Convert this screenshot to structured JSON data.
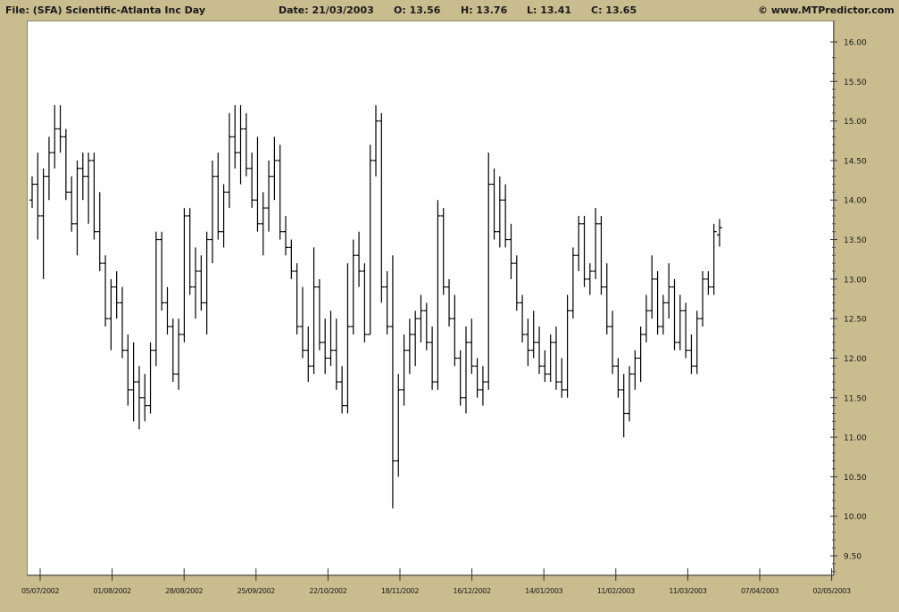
{
  "header": {
    "file": "File: (SFA) Scientific-Atlanta Inc Day",
    "date": "Date: 21/03/2003",
    "open": "O: 13.56",
    "high": "H: 13.76",
    "low": "L: 13.41",
    "close": "C: 13.65",
    "copyright": "© www.MTPredictor.com"
  },
  "colors": {
    "background": "#c9bc8e",
    "plot": "#ffffff",
    "bars": "#000000"
  },
  "chart_data": {
    "type": "ohlc",
    "title": "File: (SFA) Scientific-Atlanta Inc Day",
    "ylim": [
      9.25,
      16.0
    ],
    "ytick_labels": [
      "16.00",
      "15.50",
      "15.00",
      "14.50",
      "14.00",
      "13.50",
      "13.00",
      "12.50",
      "12.00",
      "11.50",
      "11.00",
      "10.50",
      "10.00",
      "9.50"
    ],
    "yticks": [
      16.0,
      15.5,
      15.0,
      14.5,
      14.0,
      13.5,
      13.0,
      12.5,
      12.0,
      11.5,
      11.0,
      10.5,
      10.0,
      9.5
    ],
    "y_axis_position": "right",
    "xtick_labels": [
      "05/07/2002",
      "01/08/2002",
      "28/08/2002",
      "25/09/2002",
      "22/10/2002",
      "18/11/2002",
      "16/12/2002",
      "14/01/2003",
      "11/02/2003",
      "11/03/2003",
      "07/04/2003",
      "02/05/2003"
    ],
    "grid": false,
    "last_bar": {
      "date": "21/03/2003",
      "open": 13.56,
      "high": 13.76,
      "low": 13.41,
      "close": 13.65
    },
    "ohlc_bars": [
      [
        14.0,
        14.3,
        13.9,
        14.2
      ],
      [
        14.2,
        14.6,
        13.5,
        13.8
      ],
      [
        13.8,
        14.4,
        13.0,
        14.3
      ],
      [
        14.3,
        14.8,
        14.0,
        14.6
      ],
      [
        14.6,
        15.2,
        14.4,
        14.9
      ],
      [
        14.9,
        15.2,
        14.6,
        14.8
      ],
      [
        14.8,
        14.9,
        14.0,
        14.1
      ],
      [
        14.1,
        14.3,
        13.6,
        13.7
      ],
      [
        13.7,
        14.5,
        13.3,
        14.4
      ],
      [
        14.4,
        14.6,
        14.0,
        14.3
      ],
      [
        14.3,
        14.6,
        13.7,
        14.5
      ],
      [
        14.5,
        14.6,
        13.5,
        13.6
      ],
      [
        13.6,
        14.1,
        13.1,
        13.2
      ],
      [
        13.2,
        13.3,
        12.4,
        12.5
      ],
      [
        12.5,
        13.0,
        12.1,
        12.9
      ],
      [
        12.9,
        13.1,
        12.5,
        12.7
      ],
      [
        12.7,
        12.9,
        12.0,
        12.1
      ],
      [
        12.1,
        12.3,
        11.4,
        11.6
      ],
      [
        11.6,
        12.2,
        11.2,
        11.7
      ],
      [
        11.7,
        11.9,
        11.1,
        11.5
      ],
      [
        11.5,
        11.8,
        11.2,
        11.4
      ],
      [
        11.4,
        12.2,
        11.3,
        12.1
      ],
      [
        12.1,
        13.6,
        11.9,
        13.5
      ],
      [
        13.5,
        13.6,
        12.6,
        12.7
      ],
      [
        12.7,
        12.9,
        12.3,
        12.4
      ],
      [
        12.4,
        12.5,
        11.7,
        11.8
      ],
      [
        11.8,
        12.5,
        11.6,
        12.3
      ],
      [
        12.3,
        13.9,
        12.2,
        13.8
      ],
      [
        13.8,
        13.9,
        12.8,
        12.9
      ],
      [
        12.9,
        13.4,
        12.5,
        13.1
      ],
      [
        13.1,
        13.3,
        12.6,
        12.7
      ],
      [
        12.7,
        13.6,
        12.3,
        13.5
      ],
      [
        13.5,
        14.5,
        13.2,
        14.3
      ],
      [
        14.3,
        14.6,
        13.5,
        13.6
      ],
      [
        13.6,
        14.2,
        13.4,
        14.1
      ],
      [
        14.1,
        15.1,
        13.9,
        14.8
      ],
      [
        14.8,
        15.2,
        14.4,
        14.6
      ],
      [
        14.6,
        15.2,
        14.2,
        14.9
      ],
      [
        14.9,
        15.1,
        14.3,
        14.4
      ],
      [
        14.4,
        14.6,
        13.9,
        14.0
      ],
      [
        14.0,
        14.8,
        13.6,
        13.7
      ],
      [
        13.7,
        14.1,
        13.3,
        13.9
      ],
      [
        13.9,
        14.5,
        13.6,
        14.3
      ],
      [
        14.3,
        14.8,
        14.0,
        14.5
      ],
      [
        14.5,
        14.7,
        13.5,
        13.6
      ],
      [
        13.6,
        13.8,
        13.3,
        13.4
      ],
      [
        13.4,
        13.5,
        13.0,
        13.1
      ],
      [
        13.1,
        13.2,
        12.3,
        12.4
      ],
      [
        12.4,
        12.9,
        12.0,
        12.1
      ],
      [
        12.1,
        12.4,
        11.7,
        11.9
      ],
      [
        11.9,
        13.4,
        11.8,
        12.9
      ],
      [
        12.9,
        13.0,
        12.1,
        12.2
      ],
      [
        12.2,
        12.5,
        11.8,
        12.0
      ],
      [
        12.0,
        12.6,
        11.9,
        12.1
      ],
      [
        12.1,
        12.5,
        11.6,
        11.7
      ],
      [
        11.7,
        11.9,
        11.3,
        11.4
      ],
      [
        11.4,
        13.2,
        11.3,
        12.4
      ],
      [
        12.4,
        13.5,
        12.3,
        13.3
      ],
      [
        13.3,
        13.6,
        12.9,
        13.1
      ],
      [
        13.1,
        13.2,
        12.2,
        12.3
      ],
      [
        12.3,
        14.7,
        12.3,
        14.5
      ],
      [
        14.5,
        15.2,
        14.3,
        15.0
      ],
      [
        15.0,
        15.1,
        12.7,
        12.9
      ],
      [
        12.9,
        13.1,
        12.3,
        12.4
      ],
      [
        12.4,
        13.3,
        10.1,
        10.7
      ],
      [
        10.7,
        11.8,
        10.5,
        11.6
      ],
      [
        11.6,
        12.3,
        11.4,
        12.1
      ],
      [
        12.1,
        12.5,
        11.8,
        12.3
      ],
      [
        12.3,
        12.6,
        11.9,
        12.5
      ],
      [
        12.5,
        12.8,
        12.2,
        12.6
      ],
      [
        12.6,
        12.7,
        12.1,
        12.2
      ],
      [
        12.2,
        12.4,
        11.6,
        11.7
      ],
      [
        11.7,
        14.0,
        11.6,
        13.8
      ],
      [
        13.8,
        13.9,
        12.8,
        12.9
      ],
      [
        12.9,
        13.0,
        12.4,
        12.5
      ],
      [
        12.5,
        12.8,
        11.9,
        12.0
      ],
      [
        12.0,
        12.1,
        11.4,
        11.5
      ],
      [
        11.5,
        12.4,
        11.3,
        12.2
      ],
      [
        12.2,
        12.5,
        11.8,
        11.9
      ],
      [
        11.9,
        12.0,
        11.5,
        11.6
      ],
      [
        11.6,
        11.9,
        11.4,
        11.7
      ],
      [
        11.7,
        14.6,
        11.6,
        14.2
      ],
      [
        14.2,
        14.4,
        13.5,
        13.6
      ],
      [
        13.6,
        14.3,
        13.4,
        14.0
      ],
      [
        14.0,
        14.2,
        13.4,
        13.5
      ],
      [
        13.5,
        13.7,
        13.0,
        13.2
      ],
      [
        13.2,
        13.3,
        12.6,
        12.7
      ],
      [
        12.7,
        12.8,
        12.2,
        12.3
      ],
      [
        12.3,
        12.5,
        11.9,
        12.1
      ],
      [
        12.1,
        12.6,
        12.0,
        12.2
      ],
      [
        12.2,
        12.4,
        11.8,
        11.9
      ],
      [
        11.9,
        12.1,
        11.7,
        11.8
      ],
      [
        11.8,
        12.3,
        11.7,
        12.2
      ],
      [
        12.2,
        12.4,
        11.6,
        11.7
      ],
      [
        11.7,
        12.0,
        11.5,
        11.6
      ],
      [
        11.6,
        12.8,
        11.5,
        12.6
      ],
      [
        12.6,
        13.4,
        12.5,
        13.3
      ],
      [
        13.3,
        13.8,
        13.1,
        13.7
      ],
      [
        13.7,
        13.8,
        12.9,
        13.0
      ],
      [
        13.0,
        13.2,
        12.8,
        13.1
      ],
      [
        13.1,
        13.9,
        13.0,
        13.7
      ],
      [
        13.7,
        13.8,
        12.8,
        12.9
      ],
      [
        12.9,
        13.2,
        12.3,
        12.4
      ],
      [
        12.4,
        12.6,
        11.8,
        11.9
      ],
      [
        11.9,
        12.0,
        11.5,
        11.6
      ],
      [
        11.6,
        11.8,
        11.0,
        11.3
      ],
      [
        11.3,
        11.9,
        11.2,
        11.8
      ],
      [
        11.8,
        12.1,
        11.6,
        12.0
      ],
      [
        12.0,
        12.4,
        11.7,
        12.3
      ],
      [
        12.3,
        12.8,
        12.2,
        12.6
      ],
      [
        12.6,
        13.3,
        12.5,
        13.0
      ],
      [
        13.0,
        13.1,
        12.3,
        12.4
      ],
      [
        12.4,
        12.8,
        12.3,
        12.7
      ],
      [
        12.7,
        13.2,
        12.5,
        12.9
      ],
      [
        12.9,
        13.0,
        12.1,
        12.2
      ],
      [
        12.2,
        12.8,
        12.1,
        12.6
      ],
      [
        12.6,
        12.7,
        12.0,
        12.1
      ],
      [
        12.1,
        12.3,
        11.8,
        11.9
      ],
      [
        11.9,
        12.6,
        11.8,
        12.5
      ],
      [
        12.5,
        13.1,
        12.4,
        13.0
      ],
      [
        13.0,
        13.1,
        12.8,
        12.9
      ],
      [
        12.9,
        13.7,
        12.8,
        13.6
      ],
      [
        13.56,
        13.76,
        13.41,
        13.65
      ]
    ]
  }
}
